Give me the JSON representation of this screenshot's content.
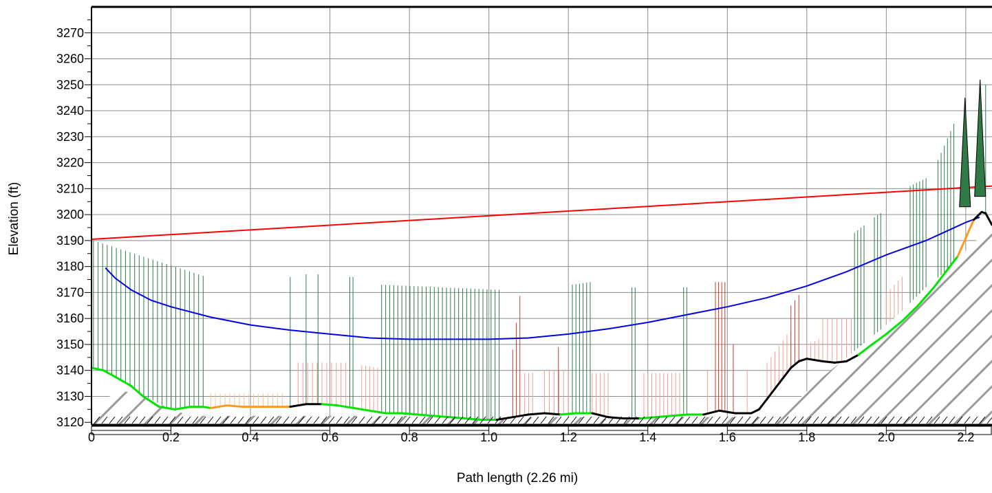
{
  "chart_data": {
    "type": "line",
    "title": "",
    "xlabel": "Path length (2.26 mi)",
    "ylabel": "Elevation (ft)",
    "xlim": [
      0,
      2.266
    ],
    "ylim": [
      3119,
      3280
    ],
    "x_ticks": [
      "0",
      "0.2",
      "0.4",
      "0.6",
      "0.8",
      "1.0",
      "1.2",
      "1.4",
      "1.6",
      "1.8",
      "2.0",
      "2.2"
    ],
    "y_ticks": [
      "3120",
      "3130",
      "3140",
      "3150",
      "3160",
      "3170",
      "3180",
      "3190",
      "3200",
      "3210",
      "3220",
      "3230",
      "3240",
      "3250",
      "3260",
      "3270"
    ],
    "grid": true,
    "series": [
      {
        "role": "terrain",
        "color": "#9a9a9a",
        "x": [
          0,
          0.03,
          0.08,
          0.12,
          0.16,
          0.2,
          0.24,
          0.28,
          0.32,
          0.36,
          0.4,
          0.44,
          0.48,
          0.52,
          0.56,
          0.6,
          0.64,
          0.68,
          0.72,
          0.76,
          0.8,
          0.84,
          0.88,
          0.92,
          0.96,
          1.0,
          1.04,
          1.08,
          1.12,
          1.16,
          1.2,
          1.24,
          1.28,
          1.32,
          1.36,
          1.4,
          1.44,
          1.48,
          1.52,
          1.56,
          1.6,
          1.64,
          1.68,
          1.7,
          1.72,
          1.74,
          1.76,
          1.78,
          1.8,
          1.82,
          1.86,
          1.9,
          1.94,
          1.98,
          2.02,
          2.06,
          2.1,
          2.14,
          2.18,
          2.22,
          2.266
        ],
        "y": [
          3125,
          3129,
          3132,
          3131,
          3128,
          3125,
          3123,
          3122.5,
          3122.5,
          3122.5,
          3122.5,
          3122.5,
          3122.5,
          3122.5,
          3122.5,
          3122.5,
          3122.5,
          3122.5,
          3122.5,
          3122.5,
          3122.5,
          3122.5,
          3122.5,
          3122,
          3121.5,
          3121,
          3121,
          3121.5,
          3122,
          3122,
          3122,
          3122,
          3121.5,
          3121,
          3121,
          3121.5,
          3122,
          3122,
          3122,
          3122,
          3122,
          3122,
          3122,
          3122,
          3123,
          3124,
          3126,
          3129,
          3132,
          3135,
          3140,
          3145,
          3150,
          3155,
          3160,
          3166,
          3172,
          3177,
          3183,
          3189,
          3196
        ]
      },
      {
        "role": "profile",
        "colors": [
          "#00e400",
          "#ff9a1f",
          "#000000"
        ],
        "x": [
          0,
          0.03,
          0.06,
          0.1,
          0.13,
          0.17,
          0.21,
          0.25,
          0.28,
          0.3,
          0.34,
          0.38,
          0.42,
          0.46,
          0.5,
          0.54,
          0.58,
          0.62,
          0.66,
          0.7,
          0.74,
          0.78,
          0.82,
          0.86,
          0.9,
          0.94,
          0.98,
          1.02,
          1.06,
          1.1,
          1.14,
          1.18,
          1.22,
          1.26,
          1.3,
          1.34,
          1.38,
          1.42,
          1.46,
          1.5,
          1.54,
          1.58,
          1.62,
          1.66,
          1.68,
          1.7,
          1.72,
          1.74,
          1.76,
          1.78,
          1.8,
          1.82,
          1.84,
          1.87,
          1.9,
          1.93,
          1.96,
          2.0,
          2.04,
          2.08,
          2.12,
          2.15,
          2.18,
          2.2,
          2.22,
          2.24,
          2.25,
          2.266
        ],
        "y": [
          3141,
          3140,
          3137.5,
          3134,
          3130,
          3126,
          3125,
          3126,
          3126,
          3125.5,
          3126.5,
          3126,
          3126,
          3126,
          3126,
          3127,
          3127,
          3126.5,
          3125.5,
          3124.5,
          3123.5,
          3123.5,
          3123,
          3122.5,
          3122,
          3121.5,
          3121,
          3121,
          3122,
          3123,
          3123.5,
          3123,
          3123.5,
          3123.5,
          3122,
          3121.5,
          3121.5,
          3122,
          3122.5,
          3123,
          3123,
          3124.5,
          3123.5,
          3123.5,
          3125,
          3129,
          3133,
          3137,
          3141,
          3143.5,
          3144.5,
          3144,
          3143.5,
          3143,
          3143.5,
          3146,
          3149.5,
          3154,
          3159,
          3165,
          3172,
          3178,
          3184,
          3191,
          3198,
          3201,
          3200.5,
          3196
        ]
      },
      {
        "role": "fresnel",
        "color": "#0000e0",
        "x": [
          0.035,
          0.06,
          0.1,
          0.15,
          0.2,
          0.3,
          0.4,
          0.5,
          0.6,
          0.7,
          0.8,
          0.9,
          1.0,
          1.1,
          1.2,
          1.3,
          1.4,
          1.5,
          1.6,
          1.7,
          1.8,
          1.9,
          2.0,
          2.1,
          2.15,
          2.2,
          2.235
        ],
        "y": [
          3179.5,
          3175.5,
          3171,
          3167,
          3164.5,
          3160.5,
          3157.5,
          3155.5,
          3154,
          3152.5,
          3152,
          3152,
          3152,
          3152.5,
          3154,
          3156,
          3158.5,
          3161.5,
          3164.5,
          3168,
          3172.5,
          3178,
          3184.5,
          3190,
          3193.5,
          3197,
          3199
        ]
      },
      {
        "role": "line-of-sight",
        "color": "#ff0000",
        "x": [
          0,
          2.266
        ],
        "y": [
          3190.5,
          3211
        ]
      }
    ],
    "obstructions": {
      "colors": [
        "#2e7d4f",
        "#cc3a2a",
        "#f0a090",
        "#f4c48c"
      ],
      "trees": [
        {
          "x": 2.198,
          "base": 3203,
          "top": 3245
        },
        {
          "x": 2.236,
          "base": 3207,
          "top": 3252
        }
      ]
    }
  }
}
